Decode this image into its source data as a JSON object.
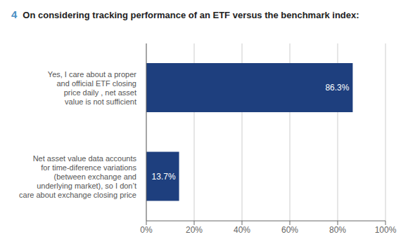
{
  "chart_data": {
    "type": "bar",
    "orientation": "horizontal",
    "title": "On considering tracking performance of an ETF versus the benchmark index:",
    "annotations": [
      "4"
    ],
    "categories": [
      "Net asset value data accounts\nfor time-diference variations\n(between exchange and\nunderlying market), so I don’t\ncare about exchange closing price",
      "Yes, I care about a proper\nand official ETF closing\nprice daily , net asset\nvalue is not sufficient"
    ],
    "values": [
      13.7,
      86.3
    ],
    "value_labels": [
      "13.7%",
      "86.3%"
    ],
    "data_labels": true,
    "color": "#1e3f7e",
    "xlim": [
      0,
      100
    ],
    "xticks": [
      {
        "value": 0,
        "label": "0%"
      },
      {
        "value": 20,
        "label": "20%"
      },
      {
        "value": 40,
        "label": "40%"
      },
      {
        "value": 60,
        "label": "60%"
      },
      {
        "value": 80,
        "label": "80%"
      },
      {
        "value": 100,
        "label": "100%"
      }
    ],
    "grid": true
  }
}
